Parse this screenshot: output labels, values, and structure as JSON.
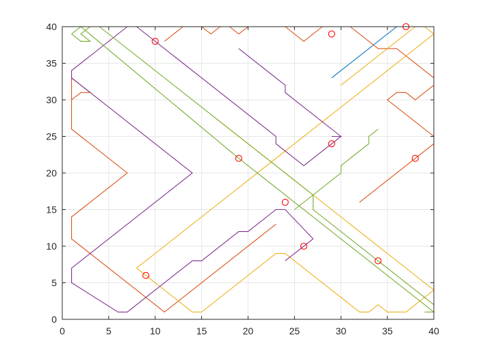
{
  "chart_data": {
    "type": "line",
    "title": "",
    "xlabel": "",
    "ylabel": "",
    "xlim": [
      0,
      40
    ],
    "ylim": [
      0,
      40
    ],
    "xticks": [
      0,
      5,
      10,
      15,
      20,
      25,
      30,
      35,
      40
    ],
    "yticks": [
      0,
      5,
      10,
      15,
      20,
      25,
      30,
      35,
      40
    ],
    "xtick_labels": [
      "0",
      "5",
      "10",
      "15",
      "20",
      "25",
      "30",
      "35",
      "40"
    ],
    "ytick_labels": [
      "0",
      "5",
      "10",
      "15",
      "20",
      "25",
      "30",
      "35",
      "40"
    ],
    "grid": true,
    "legend": "none",
    "series": [
      {
        "color": "#0072bd",
        "points": [
          [
            29,
            33
          ],
          [
            36,
            40
          ],
          [
            37,
            40
          ]
        ]
      },
      {
        "color": "#d95319",
        "points": [
          [
            1,
            30
          ],
          [
            2,
            31
          ],
          [
            3,
            31
          ],
          [
            1,
            33
          ],
          [
            1,
            30
          ]
        ]
      },
      {
        "color": "#d95319",
        "points": [
          [
            1,
            30
          ],
          [
            1,
            26
          ],
          [
            7,
            20
          ],
          [
            1,
            14
          ],
          [
            1,
            11
          ],
          [
            4,
            8
          ],
          [
            11,
            1
          ],
          [
            23,
            13
          ]
        ]
      },
      {
        "color": "#d95319",
        "points": [
          [
            11,
            38
          ],
          [
            13,
            40
          ],
          [
            15,
            40
          ],
          [
            16,
            39
          ],
          [
            17,
            40
          ],
          [
            18,
            40
          ],
          [
            19,
            39
          ],
          [
            20,
            40
          ],
          [
            24,
            40
          ],
          [
            26,
            38
          ],
          [
            28,
            40
          ],
          [
            31,
            40
          ],
          [
            34,
            37
          ],
          [
            36,
            37
          ],
          [
            40,
            33
          ]
        ]
      },
      {
        "color": "#d95319",
        "points": [
          [
            32,
            16
          ],
          [
            38,
            22
          ],
          [
            40,
            24
          ],
          [
            40,
            25
          ],
          [
            35,
            30
          ],
          [
            36,
            31
          ],
          [
            37,
            31
          ],
          [
            38,
            30
          ],
          [
            40,
            32
          ]
        ]
      },
      {
        "color": "#edb120",
        "points": [
          [
            30,
            32
          ],
          [
            37,
            39
          ],
          [
            38,
            40
          ],
          [
            39,
            40
          ],
          [
            40,
            39
          ],
          [
            40,
            38
          ]
        ]
      },
      {
        "color": "#edb120",
        "points": [
          [
            8,
            7
          ],
          [
            29,
            28
          ],
          [
            40,
            39
          ]
        ]
      },
      {
        "color": "#edb120",
        "points": [
          [
            8,
            7
          ],
          [
            14,
            1
          ],
          [
            15,
            1
          ],
          [
            23,
            9
          ],
          [
            24,
            9
          ],
          [
            32,
            1
          ],
          [
            33,
            1
          ],
          [
            34,
            2
          ],
          [
            35,
            1
          ],
          [
            37,
            1
          ],
          [
            40,
            4
          ]
        ]
      },
      {
        "color": "#edb120",
        "points": [
          [
            16,
            28
          ],
          [
            40,
            4
          ]
        ]
      },
      {
        "color": "#7e2f8e",
        "points": [
          [
            1,
            33
          ],
          [
            1,
            34
          ],
          [
            7,
            40
          ],
          [
            8,
            40
          ],
          [
            21,
            27
          ],
          [
            23,
            25
          ],
          [
            23,
            24
          ],
          [
            25,
            22
          ],
          [
            26,
            21
          ],
          [
            30,
            25
          ],
          [
            29,
            25
          ]
        ]
      },
      {
        "color": "#7e2f8e",
        "points": [
          [
            19,
            37
          ],
          [
            24,
            32
          ],
          [
            24,
            31
          ],
          [
            30,
            25
          ]
        ]
      },
      {
        "color": "#7e2f8e",
        "points": [
          [
            1,
            33
          ],
          [
            14,
            20
          ],
          [
            1,
            7
          ],
          [
            1,
            5
          ],
          [
            6,
            1
          ],
          [
            7,
            1
          ],
          [
            13,
            7
          ],
          [
            14,
            8
          ],
          [
            15,
            8
          ],
          [
            19,
            12
          ],
          [
            20,
            12
          ],
          [
            23,
            15
          ],
          [
            24,
            15
          ],
          [
            27,
            11
          ],
          [
            24,
            8
          ]
        ]
      },
      {
        "color": "#77ac30",
        "points": [
          [
            1,
            39
          ],
          [
            2,
            40
          ],
          [
            3,
            40
          ],
          [
            2,
            39
          ],
          [
            3,
            38
          ],
          [
            2,
            38
          ],
          [
            1,
            39
          ]
        ]
      },
      {
        "color": "#77ac30",
        "points": [
          [
            2,
            40
          ],
          [
            19,
            22
          ],
          [
            20,
            21
          ],
          [
            27,
            14
          ],
          [
            39,
            2
          ],
          [
            40,
            1
          ],
          [
            39,
            1
          ]
        ]
      },
      {
        "color": "#77ac30",
        "points": [
          [
            4,
            40
          ],
          [
            27,
            17
          ],
          [
            27,
            15
          ],
          [
            33,
            9
          ],
          [
            34,
            8
          ],
          [
            40,
            2
          ]
        ]
      },
      {
        "color": "#77ac30",
        "points": [
          [
            25,
            15
          ],
          [
            30,
            20
          ],
          [
            30,
            21
          ],
          [
            33,
            24
          ],
          [
            33,
            25
          ],
          [
            34,
            26
          ]
        ]
      }
    ],
    "markers": {
      "color": "#ff0000",
      "shape": "circle",
      "points": [
        [
          9,
          6
        ],
        [
          10,
          38
        ],
        [
          19,
          22
        ],
        [
          24,
          16
        ],
        [
          26,
          10
        ],
        [
          29,
          39
        ],
        [
          29,
          24
        ],
        [
          34,
          8
        ],
        [
          37,
          40
        ],
        [
          38,
          22
        ]
      ]
    }
  }
}
